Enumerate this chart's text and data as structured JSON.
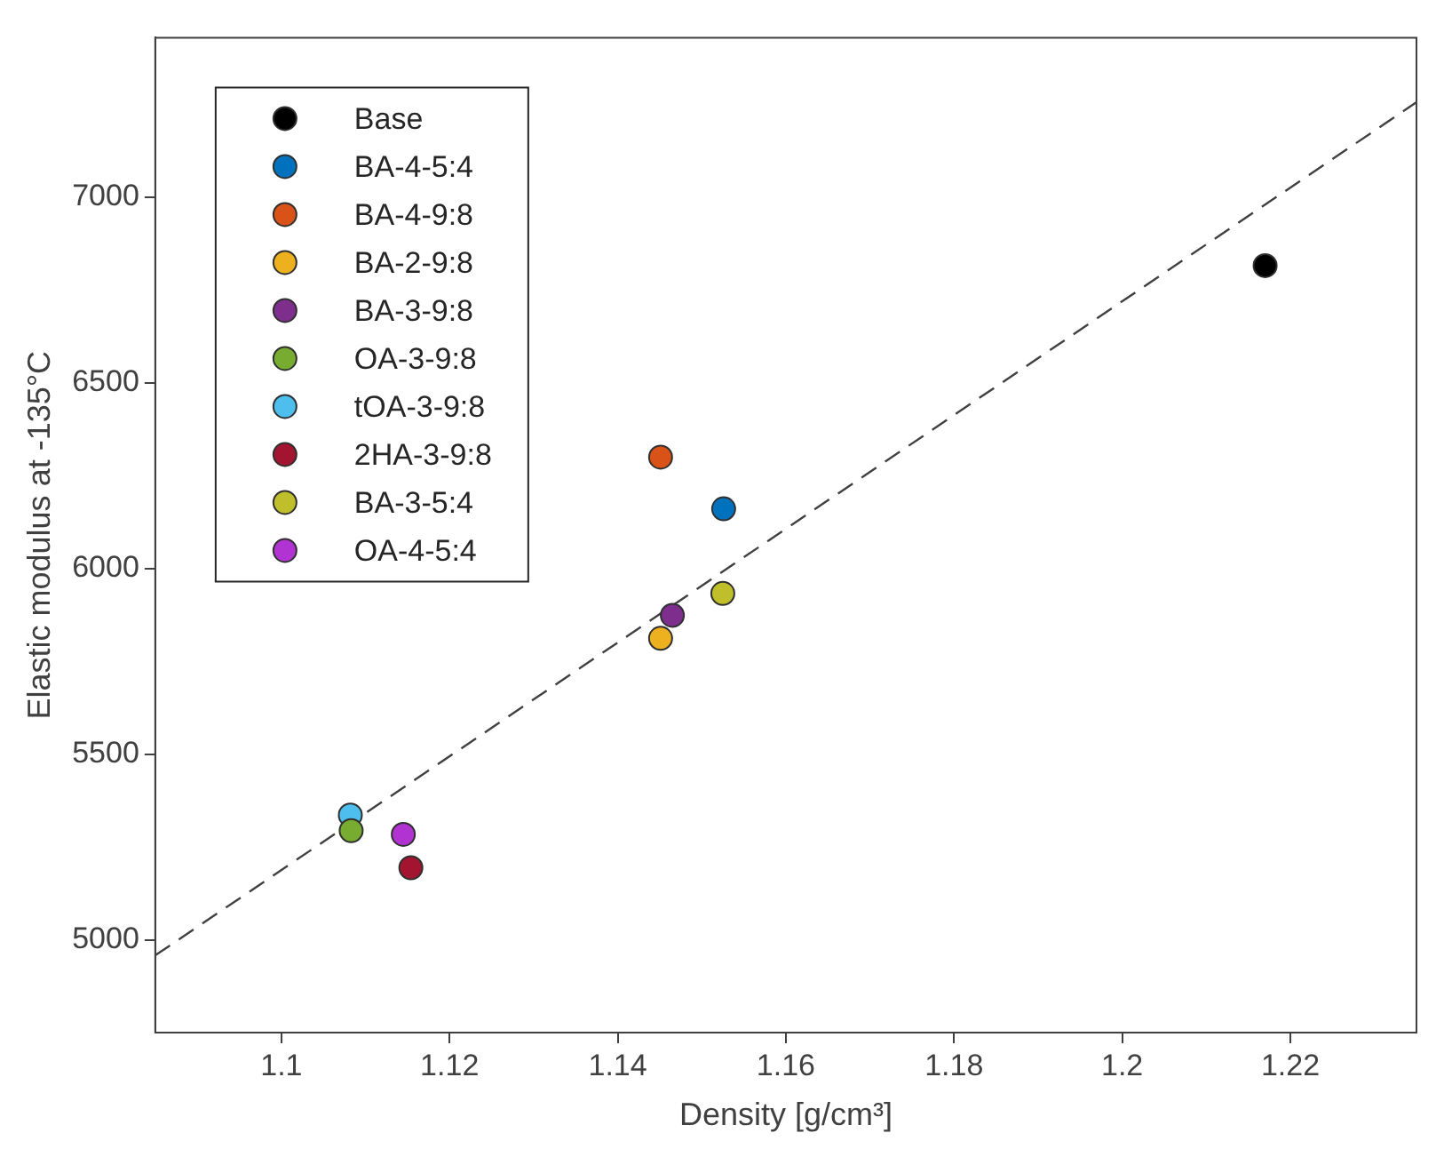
{
  "chart_data": {
    "type": "scatter",
    "xlabel": "Density [g/cm³]",
    "ylabel": "Elastic modulus at -135°C",
    "xlim": [
      1.085,
      1.235
    ],
    "xticks": [
      1.1,
      1.12,
      1.14,
      1.16,
      1.18,
      1.2,
      1.22
    ],
    "ylim": [
      4750,
      7430
    ],
    "yticks": [
      5000,
      5500,
      6000,
      6500,
      7000
    ],
    "grid": false,
    "legend": "top left",
    "marker": "circle",
    "series": [
      {
        "name": "Base",
        "color": "#000000",
        "x": [
          1.217
        ],
        "values": [
          6816
        ]
      },
      {
        "name": "BA-4-5:4",
        "color": "#0072bd",
        "x": [
          1.1526
        ],
        "values": [
          6161
        ]
      },
      {
        "name": "BA-4-9:8",
        "color": "#d95319",
        "x": [
          1.1451
        ],
        "values": [
          6300
        ]
      },
      {
        "name": "BA-2-9:8",
        "color": "#edb120",
        "x": [
          1.1451
        ],
        "values": [
          5812
        ]
      },
      {
        "name": "BA-3-9:8",
        "color": "#7e2f8e",
        "x": [
          1.1465
        ],
        "values": [
          5874
        ]
      },
      {
        "name": "OA-3-9:8",
        "color": "#77ac30",
        "x": [
          1.1083
        ],
        "values": [
          5294
        ]
      },
      {
        "name": "tOA-3-9:8",
        "color": "#4dbeee",
        "x": [
          1.1082
        ],
        "values": [
          5336
        ]
      },
      {
        "name": "2HA-3-9:8",
        "color": "#a2142f",
        "x": [
          1.1154
        ],
        "values": [
          5194
        ]
      },
      {
        "name": "BA-3-5:4",
        "color": "#bfbf2c",
        "x": [
          1.1525
        ],
        "values": [
          5933
        ]
      },
      {
        "name": "OA-4-5:4",
        "color": "#b133d1",
        "x": [
          1.1145
        ],
        "values": [
          5284
        ]
      },
      {
        "type": "line",
        "color": "#404040",
        "line_style": "dashed",
        "marker": "none",
        "x": [
          1.085,
          1.235
        ],
        "values": [
          4958,
          7256
        ]
      }
    ]
  }
}
